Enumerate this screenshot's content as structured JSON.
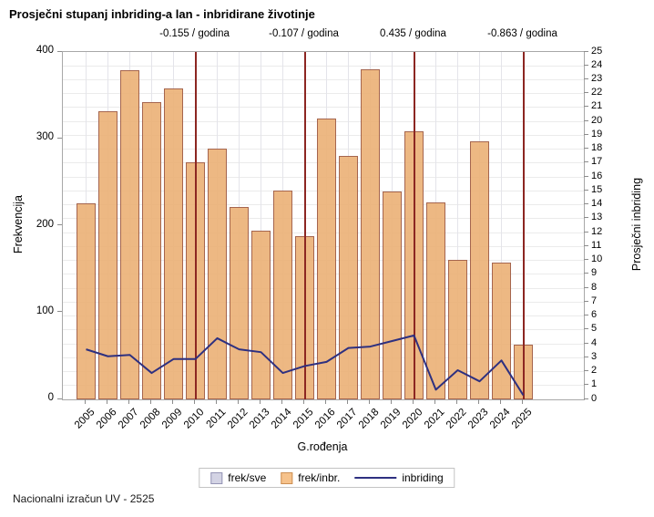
{
  "title": "Prosječni stupanj inbriding-a lan - inbridirane životinje",
  "footnote": "Nacionalni izračun UV - 2525",
  "colors": {
    "bar_fill": "#ebb076",
    "bar_border": "#a5654e",
    "line": "#2e3080",
    "reference_line": "#8c2622",
    "grid": "#ebebeb",
    "legend_sve_fill": "#d3d3e4",
    "legend_sve_border": "#9595b5",
    "legend_inbr_fill": "#f6c28b",
    "legend_inbr_border": "#cc8f54"
  },
  "chart_data": {
    "type": "bar",
    "subtype": "bar-with-line-overlay",
    "categories": [
      2005,
      2006,
      2007,
      2008,
      2009,
      2010,
      2011,
      2012,
      2013,
      2014,
      2015,
      2016,
      2017,
      2018,
      2019,
      2020,
      2021,
      2022,
      2023,
      2024,
      2025
    ],
    "series": [
      {
        "name": "frek/inbr.",
        "type": "bar",
        "axis": "left",
        "values": [
          226,
          332,
          379,
          342,
          358,
          273,
          289,
          222,
          194,
          240,
          188,
          323,
          280,
          380,
          239,
          309,
          227,
          161,
          297,
          157,
          63
        ]
      },
      {
        "name": "inbriding",
        "type": "line",
        "axis": "right",
        "values": [
          3.6,
          3.1,
          3.2,
          1.9,
          2.9,
          2.9,
          4.4,
          3.6,
          3.4,
          1.9,
          2.4,
          2.7,
          3.7,
          3.8,
          4.2,
          4.6,
          0.7,
          2.1,
          1.3,
          2.8,
          0.3
        ]
      }
    ],
    "legend": [
      "frek/sve",
      "frek/inbr.",
      "inbriding"
    ],
    "legend_position": "bottom-center",
    "grid": true,
    "title": "Prosječni stupanj inbriding-a lan - inbridirane životinje",
    "xlabel": "G.rođenja",
    "ylabel_left": "Frekvencija",
    "ylabel_right": "Prosječni inbriding",
    "ylim_left": [
      0,
      400
    ],
    "ylim_right": [
      0,
      25
    ],
    "yticks_left": [
      0,
      100,
      200,
      300,
      400
    ],
    "yticks_right": [
      0,
      1,
      2,
      3,
      4,
      5,
      6,
      7,
      8,
      9,
      10,
      11,
      12,
      13,
      14,
      15,
      16,
      17,
      18,
      19,
      20,
      21,
      22,
      23,
      24,
      25
    ],
    "annotations": [
      {
        "year": 2010,
        "label": "-0.155 / godina"
      },
      {
        "year": 2015,
        "label": "-0.107 / godina"
      },
      {
        "year": 2020,
        "label": "0.435 / godina"
      },
      {
        "year": 2025,
        "label": "-0.863 / godina"
      }
    ]
  }
}
